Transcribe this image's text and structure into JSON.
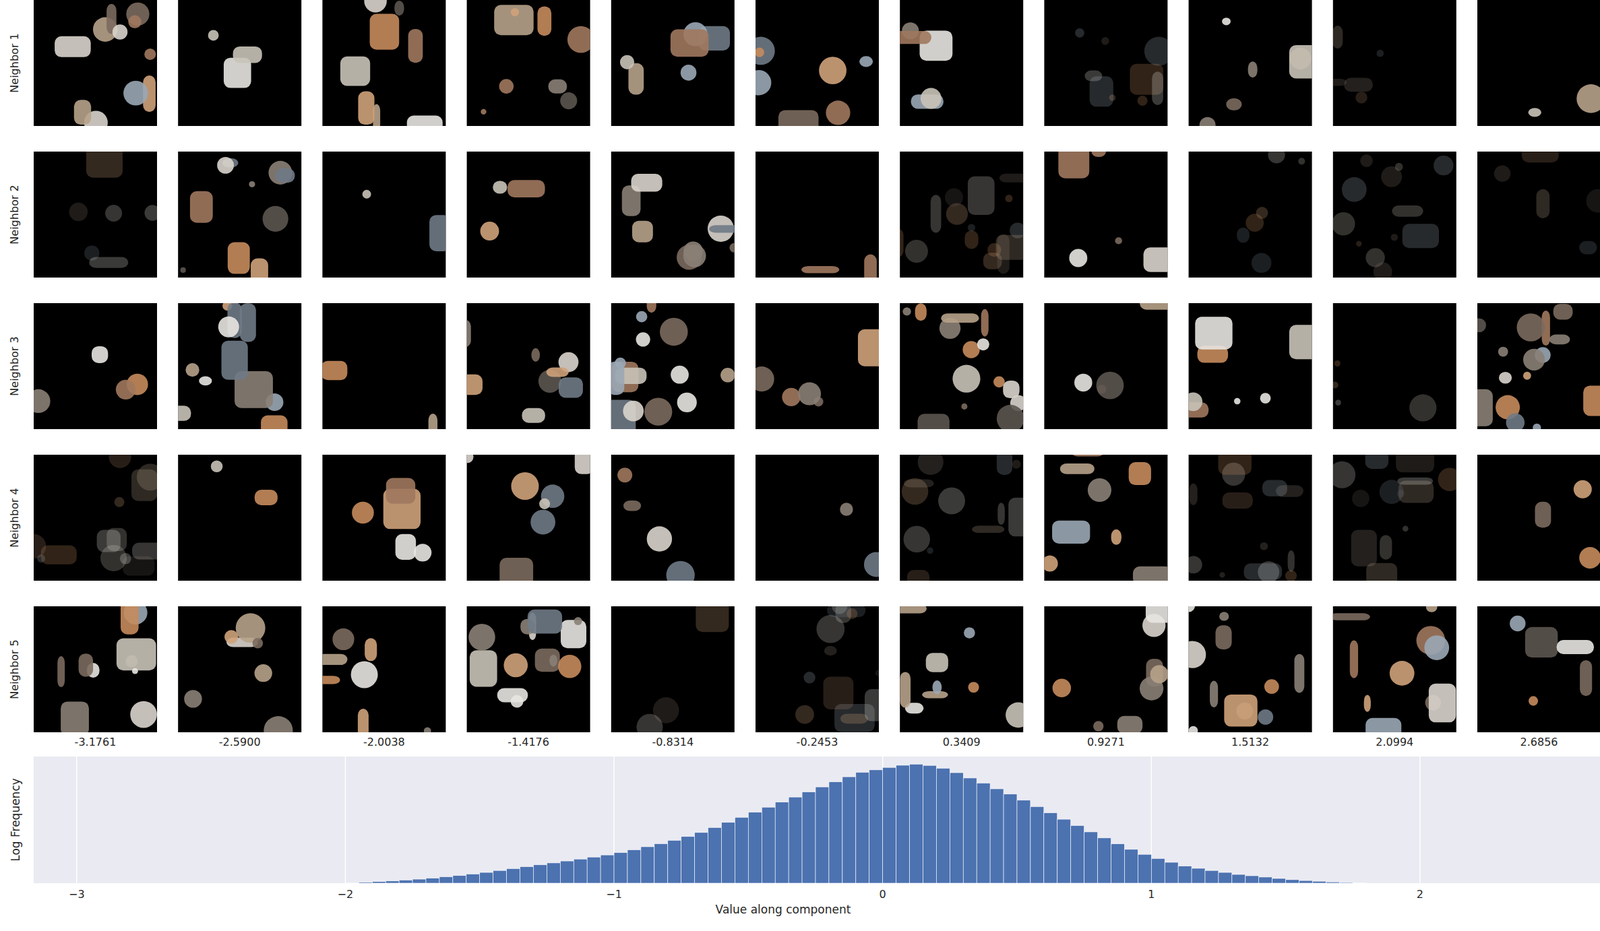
{
  "chart_data": {
    "type": "histogram",
    "xlabel": "Value along component",
    "ylabel": "Log Frequency",
    "color": "#4c72b0",
    "grid": true,
    "tick_labels": "x",
    "xlim": [
      -3.16,
      2.67
    ],
    "ylim": [
      0,
      14.5
    ],
    "xticks": [
      {
        "value": -3,
        "label": "−3"
      },
      {
        "value": -2,
        "label": "−2"
      },
      {
        "value": -1,
        "label": "−1"
      },
      0,
      1,
      2
    ],
    "yticks": [],
    "bins": [
      -2.0,
      -1.95,
      -1.9,
      -1.85,
      -1.8,
      -1.75,
      -1.7,
      -1.65,
      -1.6,
      -1.55,
      -1.5,
      -1.45,
      -1.4,
      -1.35,
      -1.3,
      -1.25,
      -1.2,
      -1.15,
      -1.1,
      -1.05,
      -1.0,
      -0.95,
      -0.9,
      -0.85,
      -0.8,
      -0.75,
      -0.7,
      -0.65,
      -0.6,
      -0.55,
      -0.5,
      -0.45,
      -0.4,
      -0.35,
      -0.3,
      -0.25,
      -0.2,
      -0.15,
      -0.1,
      -0.05,
      0.0,
      0.05,
      0.1,
      0.15,
      0.2,
      0.25,
      0.3,
      0.35,
      0.4,
      0.45,
      0.5,
      0.55,
      0.6,
      0.65,
      0.7,
      0.75,
      0.8,
      0.85,
      0.9,
      0.95,
      1.0,
      1.05,
      1.1,
      1.15,
      1.2,
      1.25,
      1.3,
      1.35,
      1.4,
      1.45,
      1.5,
      1.55,
      1.6,
      1.65,
      1.7,
      1.75,
      1.8
    ],
    "values": [
      0.05,
      0.1,
      0.18,
      0.25,
      0.36,
      0.46,
      0.58,
      0.73,
      0.87,
      1.05,
      1.23,
      1.45,
      1.67,
      1.89,
      2.1,
      2.32,
      2.54,
      2.76,
      2.99,
      3.23,
      3.5,
      3.82,
      4.17,
      4.52,
      4.9,
      5.34,
      5.8,
      6.37,
      6.96,
      7.54,
      8.12,
      8.7,
      9.28,
      9.86,
      10.44,
      11.02,
      11.6,
      12.18,
      12.7,
      12.97,
      13.25,
      13.5,
      13.63,
      13.48,
      13.16,
      12.65,
      12.04,
      11.46,
      10.8,
      10.2,
      9.5,
      8.77,
      8.05,
      7.32,
      6.6,
      5.87,
      5.18,
      4.5,
      3.87,
      3.3,
      2.83,
      2.39,
      1.96,
      1.7,
      1.45,
      1.23,
      1.0,
      0.85,
      0.7,
      0.54,
      0.4,
      0.3,
      0.22,
      0.14,
      0.08,
      0.04
    ]
  },
  "image_grid": {
    "row_labels": [
      "Neighbor 1",
      "Neighbor 2",
      "Neighbor 3",
      "Neighbor 4",
      "Neighbor 5"
    ],
    "column_values": [
      {
        "value": -3.1761,
        "label": "-3.1761"
      },
      {
        "value": -2.59,
        "label": "-2.5900"
      },
      {
        "value": -2.0038,
        "label": "-2.0038"
      },
      {
        "value": -1.4176,
        "label": "-1.4176"
      },
      {
        "value": -0.8314,
        "label": "-0.8314"
      },
      {
        "value": -0.2453,
        "label": "-0.2453"
      },
      {
        "value": 0.3409,
        "label": "0.3409"
      },
      {
        "value": 0.9271,
        "label": "0.9271"
      },
      {
        "value": 1.5132,
        "label": "1.5132"
      },
      {
        "value": 2.0994,
        "label": "2.0994"
      },
      {
        "value": 2.6856,
        "label": "2.6856"
      }
    ]
  }
}
